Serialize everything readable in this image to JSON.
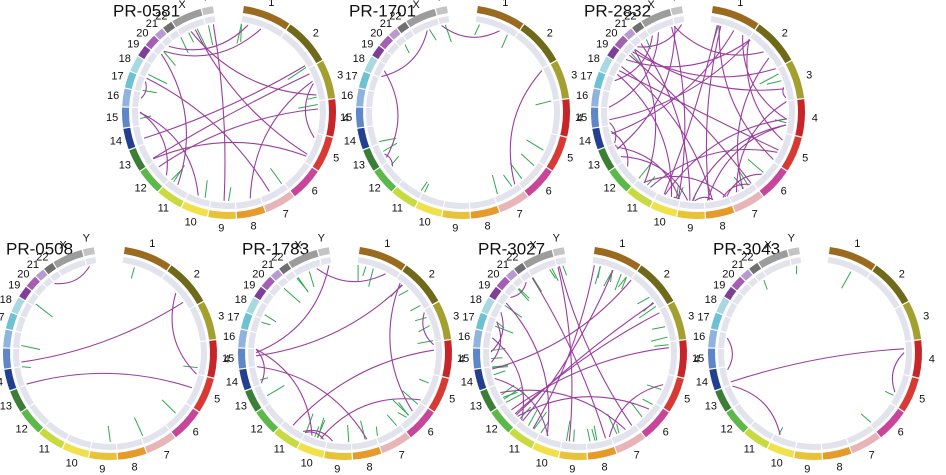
{
  "panels": [
    {
      "title": "PR-0581"
    },
    {
      "title": "PR-1701"
    },
    {
      "title": "PR-2832"
    },
    {
      "title": "PR-0508"
    },
    {
      "title": "PR-1783"
    },
    {
      "title": "PR-3027"
    },
    {
      "title": "PR-3043"
    }
  ],
  "chromosomes": [
    "1",
    "2",
    "3",
    "4",
    "5",
    "6",
    "7",
    "8",
    "9",
    "10",
    "11",
    "12",
    "13",
    "14",
    "15",
    "16",
    "17",
    "18",
    "19",
    "20",
    "21",
    "22",
    "X",
    "Y"
  ]
}
